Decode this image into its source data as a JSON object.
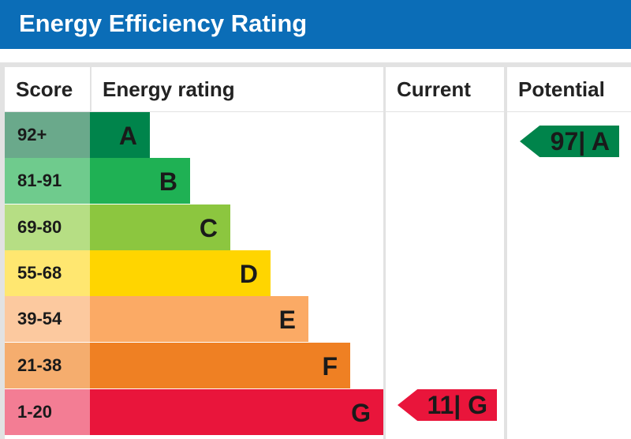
{
  "header": {
    "title": "Energy Efficiency Rating"
  },
  "columns": {
    "score": "Score",
    "rating": "Energy rating",
    "current": "Current",
    "potential": "Potential"
  },
  "bands": [
    {
      "range": "92+",
      "letter": "A",
      "score_bg": "#6aa98b",
      "bar_bg": "#00844b"
    },
    {
      "range": "81-91",
      "letter": "B",
      "score_bg": "#6fcb8d",
      "bar_bg": "#1fb154"
    },
    {
      "range": "69-80",
      "letter": "C",
      "score_bg": "#b6de84",
      "bar_bg": "#8cc63f"
    },
    {
      "range": "55-68",
      "letter": "D",
      "score_bg": "#ffe770",
      "bar_bg": "#ffd500"
    },
    {
      "range": "39-54",
      "letter": "E",
      "score_bg": "#fcc99f",
      "bar_bg": "#fbaa65"
    },
    {
      "range": "21-38",
      "letter": "F",
      "score_bg": "#f5ad6e",
      "bar_bg": "#ef8023"
    },
    {
      "range": "1-20",
      "letter": "G",
      "score_bg": "#f37d94",
      "bar_bg": "#e9153b"
    }
  ],
  "current": {
    "label": "11| G",
    "color": "#e9153b",
    "text_color": "#1a1a1a"
  },
  "potential": {
    "label": "97| A",
    "color": "#00844b",
    "text_color": "#1a1a1a"
  }
}
